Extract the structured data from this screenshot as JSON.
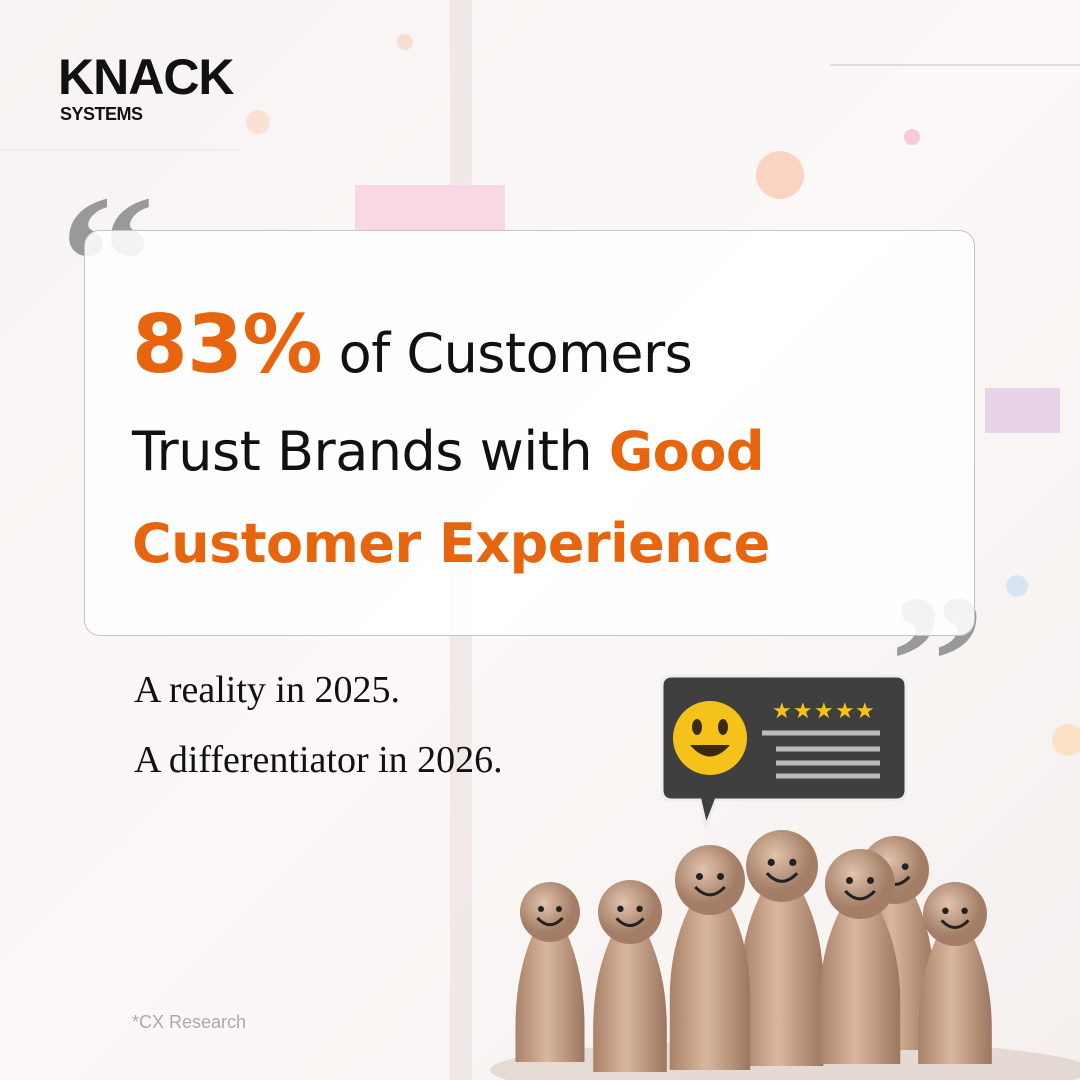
{
  "brand": {
    "name": "KNACK",
    "tagline": "SYSTEMS"
  },
  "headline": {
    "stat": "83%",
    "line1_rest": "of Customers",
    "line2": "Trust Brands with",
    "highlight1": "Good",
    "highlight2": "Customer Experience"
  },
  "subtext": {
    "line1": "A reality in 2025.",
    "line2": "A differentiator in 2026."
  },
  "footnote": "*CX Research"
}
